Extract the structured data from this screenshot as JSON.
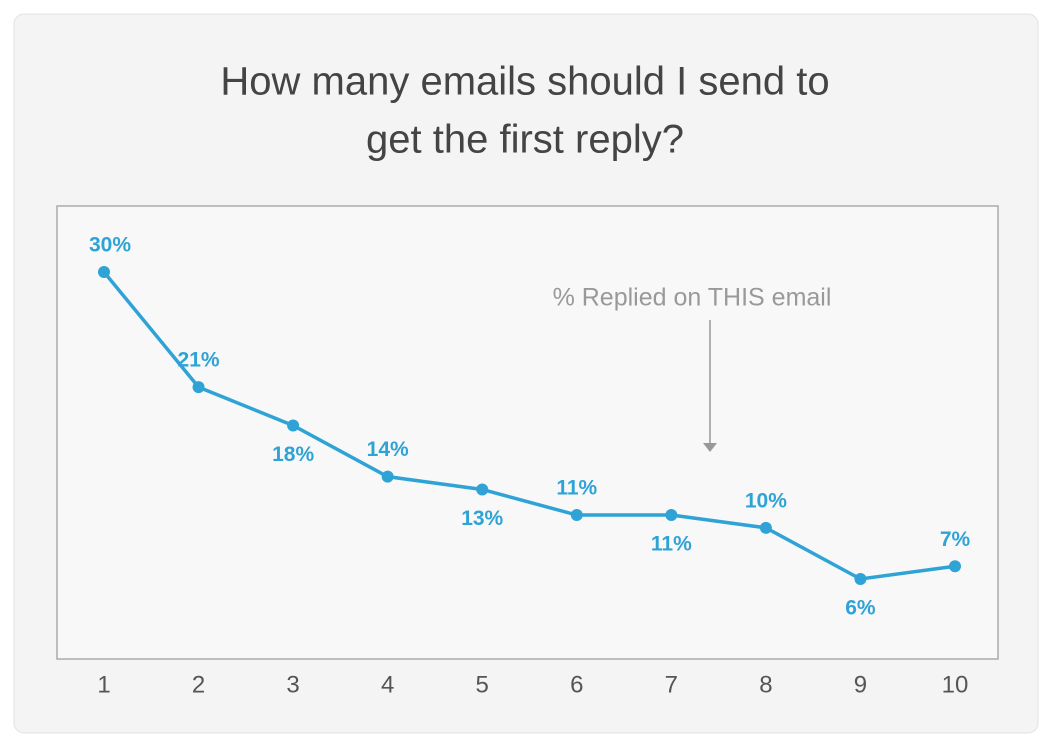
{
  "chart_data": {
    "type": "line",
    "title": [
      "How many emails should I send to",
      "get the first reply?"
    ],
    "annotation": "% Replied on THIS email",
    "categories": [
      "1",
      "2",
      "3",
      "4",
      "5",
      "6",
      "7",
      "8",
      "9",
      "10"
    ],
    "values": [
      30,
      21,
      18,
      14,
      13,
      11,
      11,
      10,
      6,
      7
    ],
    "value_labels": [
      "30%",
      "21%",
      "18%",
      "14%",
      "13%",
      "11%",
      "11%",
      "10%",
      "6%",
      "7%"
    ],
    "color": "#2fa3d6"
  }
}
